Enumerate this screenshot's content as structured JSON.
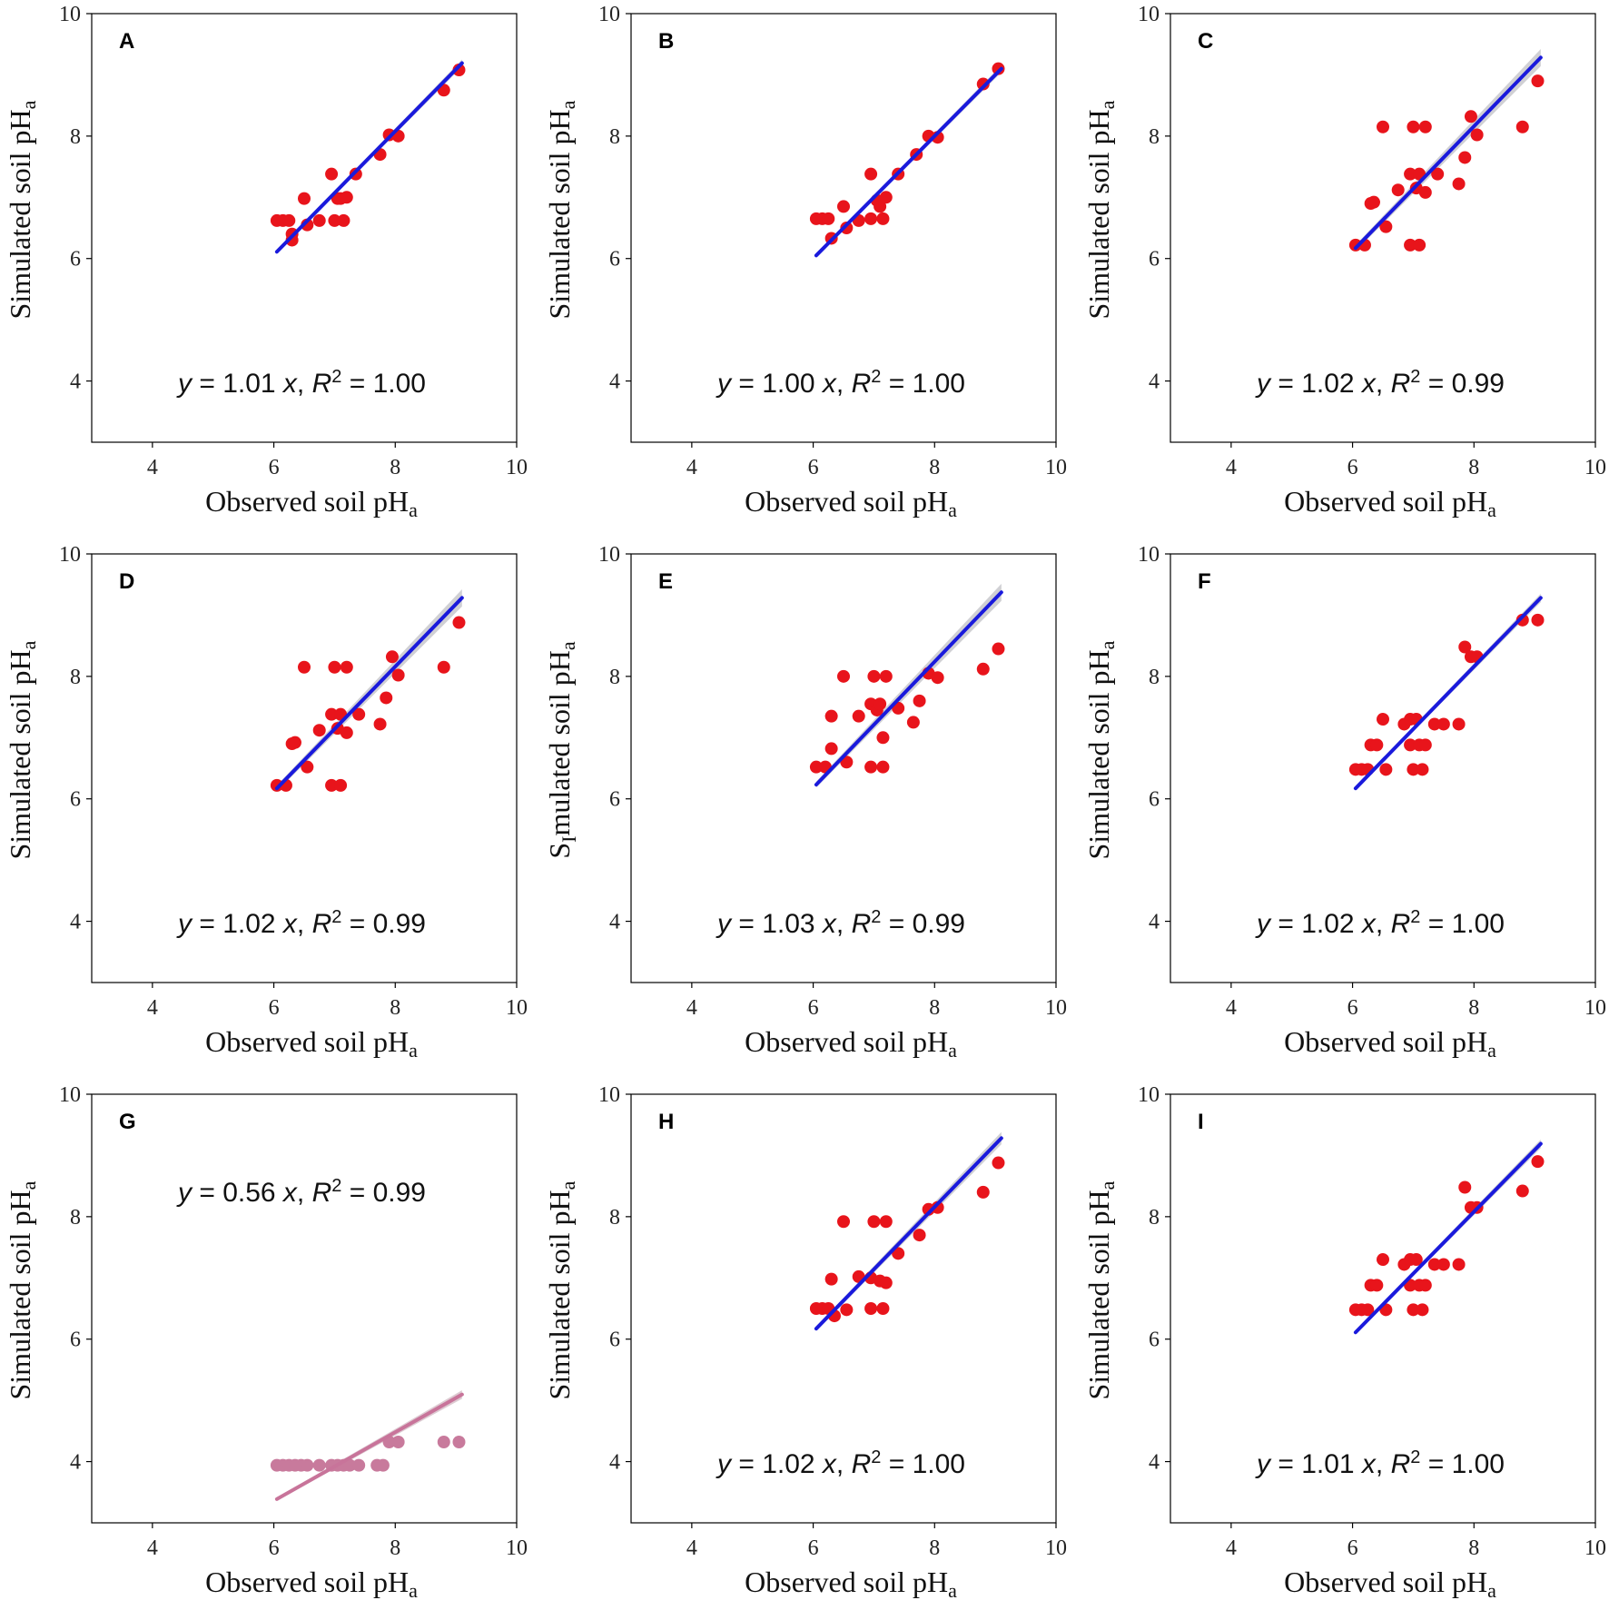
{
  "figure": {
    "xlabel_main": "Observed soil pH",
    "ylabel_main": "Simulated soil pH",
    "subscript": "a",
    "ylabel_e_prefix": "S",
    "ylabel_e_rest": "mulated soil pH",
    "ylabel_e_cursor": "I"
  },
  "colors": {
    "point": "#e8141b",
    "line": "#1a1adc",
    "band": "#c8c8cc",
    "point_g": "#c87a9c",
    "line_g": "#c8749a",
    "band_g": "#d7c2ca"
  },
  "chart_data": [
    {
      "type": "scatter",
      "panel": "A",
      "xlim": [
        3,
        10
      ],
      "ylim": [
        3,
        10
      ],
      "xticks": [
        "4",
        "6",
        "8",
        "10"
      ],
      "yticks": [
        "4",
        "6",
        "8",
        "10"
      ],
      "eq_prefix": "y",
      "eq_coef": " = 1.01 ",
      "eq_x": "x",
      "eq_mid": ", ",
      "eq_R": "R",
      "eq_sup": "2",
      "eq_value": " = 1.00",
      "eq_pos": "bottom",
      "slope": 1.01,
      "line_x": [
        6.05,
        9.1
      ],
      "band": 0.06,
      "palette": "normal",
      "points": [
        [
          6.05,
          6.62
        ],
        [
          6.15,
          6.62
        ],
        [
          6.25,
          6.62
        ],
        [
          6.3,
          6.4
        ],
        [
          6.3,
          6.3
        ],
        [
          6.5,
          6.98
        ],
        [
          6.55,
          6.55
        ],
        [
          6.75,
          6.62
        ],
        [
          6.95,
          7.38
        ],
        [
          7.0,
          6.62
        ],
        [
          7.05,
          6.98
        ],
        [
          7.1,
          6.98
        ],
        [
          7.15,
          6.62
        ],
        [
          7.2,
          7.0
        ],
        [
          7.35,
          7.38
        ],
        [
          7.75,
          7.7
        ],
        [
          7.9,
          8.02
        ],
        [
          8.05,
          8.0
        ],
        [
          8.8,
          8.75
        ],
        [
          9.05,
          9.08
        ]
      ]
    },
    {
      "type": "scatter",
      "panel": "B",
      "xlim": [
        3,
        10
      ],
      "ylim": [
        3,
        10
      ],
      "xticks": [
        "4",
        "6",
        "8",
        "10"
      ],
      "yticks": [
        "4",
        "6",
        "8",
        "10"
      ],
      "eq_prefix": "y",
      "eq_coef": " = 1.00 ",
      "eq_x": "x",
      "eq_mid": ", ",
      "eq_R": "R",
      "eq_sup": "2",
      "eq_value": " = 1.00",
      "eq_pos": "bottom",
      "slope": 1.0,
      "line_x": [
        6.05,
        9.1
      ],
      "band": 0.06,
      "palette": "normal",
      "points": [
        [
          6.05,
          6.65
        ],
        [
          6.15,
          6.65
        ],
        [
          6.25,
          6.65
        ],
        [
          6.3,
          6.33
        ],
        [
          6.5,
          6.85
        ],
        [
          6.55,
          6.5
        ],
        [
          6.75,
          6.62
        ],
        [
          6.95,
          7.38
        ],
        [
          6.95,
          6.65
        ],
        [
          7.05,
          6.95
        ],
        [
          7.1,
          6.85
        ],
        [
          7.15,
          6.65
        ],
        [
          7.2,
          7.0
        ],
        [
          7.4,
          7.38
        ],
        [
          7.7,
          7.7
        ],
        [
          7.9,
          8.0
        ],
        [
          8.05,
          7.98
        ],
        [
          8.8,
          8.85
        ],
        [
          9.05,
          9.1
        ]
      ]
    },
    {
      "type": "scatter",
      "panel": "C",
      "xlim": [
        3,
        10
      ],
      "ylim": [
        3,
        10
      ],
      "xticks": [
        "4",
        "6",
        "8",
        "10"
      ],
      "yticks": [
        "4",
        "6",
        "8",
        "10"
      ],
      "eq_prefix": "y",
      "eq_coef": " = 1.02 ",
      "eq_x": "x",
      "eq_mid": ", ",
      "eq_R": "R",
      "eq_sup": "2",
      "eq_value": " = 0.99",
      "eq_pos": "bottom",
      "slope": 1.02,
      "line_x": [
        6.05,
        9.1
      ],
      "band": 0.14,
      "palette": "normal",
      "points": [
        [
          6.05,
          6.22
        ],
        [
          6.2,
          6.22
        ],
        [
          6.3,
          6.9
        ],
        [
          6.35,
          6.92
        ],
        [
          6.5,
          8.15
        ],
        [
          6.55,
          6.52
        ],
        [
          6.75,
          7.12
        ],
        [
          6.95,
          7.38
        ],
        [
          6.95,
          6.22
        ],
        [
          7.0,
          8.15
        ],
        [
          7.05,
          7.15
        ],
        [
          7.1,
          7.38
        ],
        [
          7.1,
          6.22
        ],
        [
          7.2,
          8.15
        ],
        [
          7.2,
          7.08
        ],
        [
          7.4,
          7.38
        ],
        [
          7.75,
          7.22
        ],
        [
          7.85,
          7.65
        ],
        [
          7.95,
          8.32
        ],
        [
          8.05,
          8.02
        ],
        [
          8.8,
          8.15
        ],
        [
          9.05,
          8.9
        ]
      ]
    },
    {
      "type": "scatter",
      "panel": "D",
      "xlim": [
        3,
        10
      ],
      "ylim": [
        3,
        10
      ],
      "xticks": [
        "4",
        "6",
        "8",
        "10"
      ],
      "yticks": [
        "4",
        "6",
        "8",
        "10"
      ],
      "eq_prefix": "y",
      "eq_coef": " = 1.02 ",
      "eq_x": "x",
      "eq_mid": ", ",
      "eq_R": "R",
      "eq_sup": "2",
      "eq_value": " = 0.99",
      "eq_pos": "bottom",
      "slope": 1.02,
      "line_x": [
        6.05,
        9.1
      ],
      "band": 0.14,
      "palette": "normal",
      "points": [
        [
          6.05,
          6.22
        ],
        [
          6.2,
          6.22
        ],
        [
          6.3,
          6.9
        ],
        [
          6.35,
          6.92
        ],
        [
          6.5,
          8.15
        ],
        [
          6.55,
          6.52
        ],
        [
          6.75,
          7.12
        ],
        [
          6.95,
          7.38
        ],
        [
          6.95,
          6.22
        ],
        [
          7.0,
          8.15
        ],
        [
          7.05,
          7.15
        ],
        [
          7.1,
          7.38
        ],
        [
          7.1,
          6.22
        ],
        [
          7.2,
          8.15
        ],
        [
          7.2,
          7.08
        ],
        [
          7.4,
          7.38
        ],
        [
          7.75,
          7.22
        ],
        [
          7.85,
          7.65
        ],
        [
          7.95,
          8.32
        ],
        [
          8.05,
          8.02
        ],
        [
          8.8,
          8.15
        ],
        [
          9.05,
          8.88
        ]
      ]
    },
    {
      "type": "scatter",
      "panel": "E",
      "xlim": [
        3,
        10
      ],
      "ylim": [
        3,
        10
      ],
      "xticks": [
        "4",
        "6",
        "8",
        "10"
      ],
      "yticks": [
        "4",
        "6",
        "8",
        "10"
      ],
      "eq_prefix": "y",
      "eq_coef": " = 1.03 ",
      "eq_x": "x",
      "eq_mid": ", ",
      "eq_R": "R",
      "eq_sup": "2",
      "eq_value": " = 0.99",
      "eq_pos": "bottom",
      "slope": 1.03,
      "line_x": [
        6.05,
        9.1
      ],
      "band": 0.14,
      "palette": "normal",
      "points": [
        [
          6.05,
          6.52
        ],
        [
          6.2,
          6.52
        ],
        [
          6.3,
          6.82
        ],
        [
          6.3,
          7.35
        ],
        [
          6.5,
          8.0
        ],
        [
          6.55,
          6.6
        ],
        [
          6.75,
          7.35
        ],
        [
          6.95,
          7.55
        ],
        [
          6.95,
          6.52
        ],
        [
          7.0,
          8.0
        ],
        [
          7.05,
          7.45
        ],
        [
          7.1,
          7.55
        ],
        [
          7.15,
          7.0
        ],
        [
          7.15,
          6.52
        ],
        [
          7.2,
          8.0
        ],
        [
          7.4,
          7.48
        ],
        [
          7.65,
          7.25
        ],
        [
          7.75,
          7.6
        ],
        [
          7.9,
          8.05
        ],
        [
          8.05,
          7.98
        ],
        [
          8.8,
          8.12
        ],
        [
          9.05,
          8.45
        ]
      ]
    },
    {
      "type": "scatter",
      "panel": "F",
      "xlim": [
        3,
        10
      ],
      "ylim": [
        3,
        10
      ],
      "xticks": [
        "4",
        "6",
        "8",
        "10"
      ],
      "yticks": [
        "4",
        "6",
        "8",
        "10"
      ],
      "eq_prefix": "y",
      "eq_coef": " = 1.02 ",
      "eq_x": "x",
      "eq_mid": ", ",
      "eq_R": "R",
      "eq_sup": "2",
      "eq_value": " = 1.00",
      "eq_pos": "bottom",
      "slope": 1.02,
      "line_x": [
        6.05,
        9.1
      ],
      "band": 0.07,
      "palette": "normal",
      "points": [
        [
          6.05,
          6.48
        ],
        [
          6.15,
          6.48
        ],
        [
          6.25,
          6.48
        ],
        [
          6.3,
          6.88
        ],
        [
          6.4,
          6.88
        ],
        [
          6.5,
          7.3
        ],
        [
          6.55,
          6.48
        ],
        [
          6.85,
          7.22
        ],
        [
          6.95,
          7.3
        ],
        [
          6.95,
          6.88
        ],
        [
          7.0,
          6.48
        ],
        [
          7.05,
          7.3
        ],
        [
          7.1,
          6.88
        ],
        [
          7.15,
          6.48
        ],
        [
          7.2,
          6.88
        ],
        [
          7.35,
          7.22
        ],
        [
          7.5,
          7.22
        ],
        [
          7.75,
          7.22
        ],
        [
          7.85,
          8.48
        ],
        [
          7.95,
          8.32
        ],
        [
          8.05,
          8.32
        ],
        [
          8.8,
          8.92
        ],
        [
          9.05,
          8.92
        ]
      ]
    },
    {
      "type": "scatter",
      "panel": "G",
      "xlim": [
        3,
        10
      ],
      "ylim": [
        3,
        10
      ],
      "xticks": [
        "4",
        "6",
        "8",
        "10"
      ],
      "yticks": [
        "4",
        "6",
        "8",
        "10"
      ],
      "eq_prefix": "y",
      "eq_coef": " = 0.56 ",
      "eq_x": "x",
      "eq_mid": ", ",
      "eq_R": "R",
      "eq_sup": "2",
      "eq_value": " = 0.99",
      "eq_pos": "top",
      "slope": 0.56,
      "line_x": [
        6.05,
        9.1
      ],
      "band": 0.07,
      "palette": "pink",
      "points": [
        [
          6.05,
          3.94
        ],
        [
          6.15,
          3.94
        ],
        [
          6.25,
          3.94
        ],
        [
          6.35,
          3.94
        ],
        [
          6.45,
          3.94
        ],
        [
          6.55,
          3.94
        ],
        [
          6.75,
          3.94
        ],
        [
          6.95,
          3.94
        ],
        [
          7.05,
          3.94
        ],
        [
          7.15,
          3.94
        ],
        [
          7.25,
          3.94
        ],
        [
          7.4,
          3.94
        ],
        [
          7.7,
          3.94
        ],
        [
          7.8,
          3.94
        ],
        [
          7.9,
          4.32
        ],
        [
          8.05,
          4.32
        ],
        [
          8.8,
          4.32
        ],
        [
          9.05,
          4.32
        ]
      ]
    },
    {
      "type": "scatter",
      "panel": "H",
      "xlim": [
        3,
        10
      ],
      "ylim": [
        3,
        10
      ],
      "xticks": [
        "4",
        "6",
        "8",
        "10"
      ],
      "yticks": [
        "4",
        "6",
        "8",
        "10"
      ],
      "eq_prefix": "y",
      "eq_coef": " = 1.02 ",
      "eq_x": "x",
      "eq_mid": ", ",
      "eq_R": "R",
      "eq_sup": "2",
      "eq_value": " = 1.00",
      "eq_pos": "bottom",
      "slope": 1.02,
      "line_x": [
        6.05,
        9.1
      ],
      "band": 0.1,
      "palette": "normal",
      "points": [
        [
          6.05,
          6.5
        ],
        [
          6.15,
          6.5
        ],
        [
          6.25,
          6.5
        ],
        [
          6.3,
          6.98
        ],
        [
          6.35,
          6.38
        ],
        [
          6.5,
          7.92
        ],
        [
          6.55,
          6.48
        ],
        [
          6.75,
          7.02
        ],
        [
          6.95,
          7.0
        ],
        [
          6.95,
          6.5
        ],
        [
          7.0,
          7.92
        ],
        [
          7.1,
          6.95
        ],
        [
          7.15,
          6.5
        ],
        [
          7.2,
          7.92
        ],
        [
          7.2,
          6.92
        ],
        [
          7.4,
          7.4
        ],
        [
          7.75,
          7.7
        ],
        [
          7.9,
          8.12
        ],
        [
          8.05,
          8.15
        ],
        [
          8.8,
          8.4
        ],
        [
          9.05,
          8.88
        ]
      ]
    },
    {
      "type": "scatter",
      "panel": "I",
      "xlim": [
        3,
        10
      ],
      "ylim": [
        3,
        10
      ],
      "xticks": [
        "4",
        "6",
        "8",
        "10"
      ],
      "yticks": [
        "4",
        "6",
        "8",
        "10"
      ],
      "eq_prefix": "y",
      "eq_coef": " = 1.01 ",
      "eq_x": "x",
      "eq_mid": ", ",
      "eq_R": "R",
      "eq_sup": "2",
      "eq_value": " = 1.00",
      "eq_pos": "bottom",
      "slope": 1.01,
      "line_x": [
        6.05,
        9.1
      ],
      "band": 0.07,
      "palette": "normal",
      "points": [
        [
          6.05,
          6.48
        ],
        [
          6.15,
          6.48
        ],
        [
          6.25,
          6.48
        ],
        [
          6.3,
          6.88
        ],
        [
          6.4,
          6.88
        ],
        [
          6.5,
          7.3
        ],
        [
          6.55,
          6.48
        ],
        [
          6.85,
          7.22
        ],
        [
          6.95,
          7.3
        ],
        [
          6.95,
          6.88
        ],
        [
          7.0,
          6.48
        ],
        [
          7.05,
          7.3
        ],
        [
          7.1,
          6.88
        ],
        [
          7.15,
          6.48
        ],
        [
          7.2,
          6.88
        ],
        [
          7.35,
          7.22
        ],
        [
          7.5,
          7.22
        ],
        [
          7.75,
          7.22
        ],
        [
          7.85,
          8.48
        ],
        [
          7.95,
          8.15
        ],
        [
          8.05,
          8.15
        ],
        [
          8.8,
          8.42
        ],
        [
          9.05,
          8.9
        ]
      ]
    }
  ]
}
